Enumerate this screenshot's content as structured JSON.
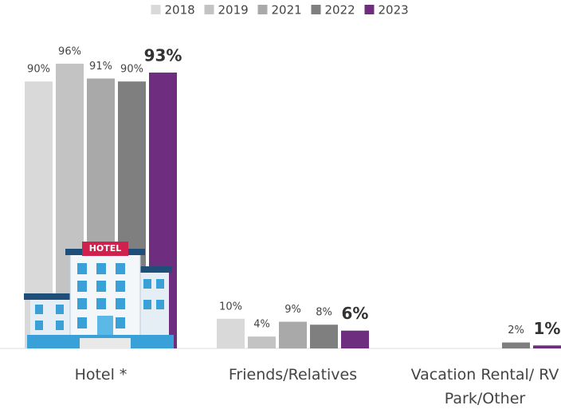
{
  "chart_data": {
    "type": "bar",
    "categories": [
      "Hotel *",
      "Friends/Relatives",
      "Vacation Rental/ RV Park/Other"
    ],
    "series": [
      {
        "name": "2018",
        "color": "#d9d9d9",
        "values": [
          90,
          10,
          null
        ],
        "value_labels": [
          "90%",
          "10%",
          null
        ]
      },
      {
        "name": "2019",
        "color": "#c3c3c3",
        "values": [
          96,
          4,
          null
        ],
        "value_labels": [
          "96%",
          "4%",
          null
        ]
      },
      {
        "name": "2021",
        "color": "#a9a9a9",
        "values": [
          91,
          9,
          null
        ],
        "value_labels": [
          "91%",
          "9%",
          null
        ]
      },
      {
        "name": "2022",
        "color": "#7f7f7f",
        "values": [
          90,
          8,
          2
        ],
        "value_labels": [
          "90%",
          "8%",
          "2%"
        ]
      },
      {
        "name": "2023",
        "color": "#6e2d7e",
        "values": [
          93,
          6,
          1
        ],
        "value_labels": [
          "93%",
          "6%",
          "1%"
        ]
      }
    ],
    "legend": "top",
    "icon_label": "HOTEL"
  }
}
